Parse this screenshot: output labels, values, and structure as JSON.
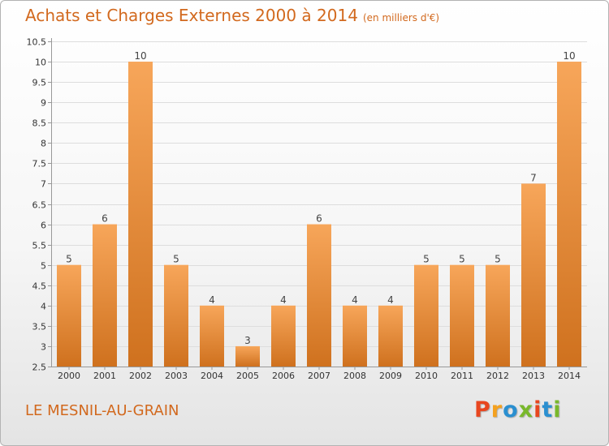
{
  "header": {
    "title": "Achats et Charges Externes 2000 à 2014",
    "units": "(en milliers d'€)"
  },
  "footer": {
    "commune": "LE MESNIL-AU-GRAIN",
    "brand": "Proxiti",
    "brand_letters": [
      "P",
      "r",
      "o",
      "x",
      "i",
      "t",
      "i"
    ],
    "brand_colors": [
      "#e8461f",
      "#f4a11f",
      "#2a8fd0",
      "#79b82b",
      "#e8461f",
      "#2a8fd0",
      "#79b82b"
    ]
  },
  "colors": {
    "accent": "#d2691e",
    "bar_top": "#f7a65a",
    "bar_bottom": "#cf711e",
    "grid": "#dddddd",
    "axis_text": "#333333"
  },
  "chart_data": {
    "type": "bar",
    "title": "Achats et Charges Externes 2000 à 2014",
    "xlabel": "",
    "ylabel": "",
    "categories": [
      "2000",
      "2001",
      "2002",
      "2003",
      "2004",
      "2005",
      "2006",
      "2007",
      "2008",
      "2009",
      "2010",
      "2011",
      "2012",
      "2013",
      "2014"
    ],
    "values": [
      5,
      6,
      10,
      5,
      4,
      3,
      4,
      6,
      4,
      4,
      5,
      5,
      5,
      7,
      10
    ],
    "value_labels": [
      "5",
      "6",
      "10",
      "5",
      "4",
      "3",
      "4",
      "6",
      "4",
      "4",
      "5",
      "5",
      "5",
      "7",
      "10"
    ],
    "ylim": [
      2.5,
      10.5
    ],
    "yticks": [
      2.5,
      3,
      3.5,
      4,
      4.5,
      5,
      5.5,
      6,
      6.5,
      7,
      7.5,
      8,
      8.5,
      9,
      9.5,
      10,
      10.5
    ],
    "ytick_labels": [
      "2.5",
      "3",
      "3.5",
      "4",
      "4.5",
      "5",
      "5.5",
      "6",
      "6.5",
      "7",
      "7.5",
      "8",
      "8.5",
      "9",
      "9.5",
      "10",
      "10.5"
    ],
    "grid": true
  }
}
